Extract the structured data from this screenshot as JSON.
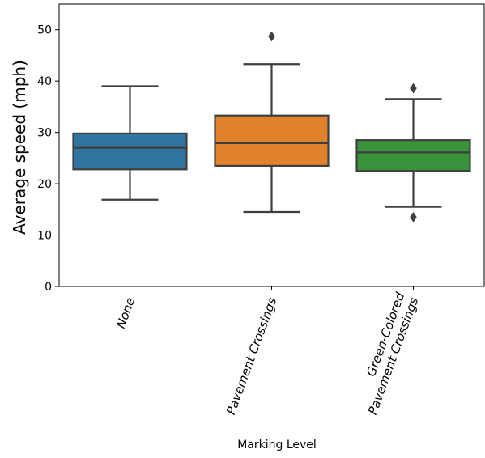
{
  "chart_data": {
    "type": "box",
    "title": "",
    "xlabel": "Marking Level",
    "ylabel": "Average speed (mph)",
    "ylim": [
      0,
      55
    ],
    "yticks": [
      0,
      10,
      20,
      30,
      40,
      50
    ],
    "grid": false,
    "legend": "none",
    "categories": [
      "None",
      "Pavement Crossings",
      "Green-Colored\nPavement Crossings"
    ],
    "boxes": [
      {
        "category": "None",
        "color": "#3274a1",
        "whisker_low": 16.9,
        "q1": 22.8,
        "median": 27.0,
        "q3": 29.8,
        "whisker_high": 39.0,
        "outliers": []
      },
      {
        "category": "Pavement Crossings",
        "color": "#e1812c",
        "whisker_low": 14.5,
        "q1": 23.5,
        "median": 27.9,
        "q3": 33.3,
        "whisker_high": 43.3,
        "outliers": [
          48.7
        ]
      },
      {
        "category": "Green-Colored\nPavement Crossings",
        "color": "#3a923a",
        "whisker_low": 15.5,
        "q1": 22.5,
        "median": 26.1,
        "q3": 28.5,
        "whisker_high": 36.5,
        "outliers": [
          38.6,
          13.5
        ]
      }
    ],
    "line_color": "#3f3f3f"
  }
}
